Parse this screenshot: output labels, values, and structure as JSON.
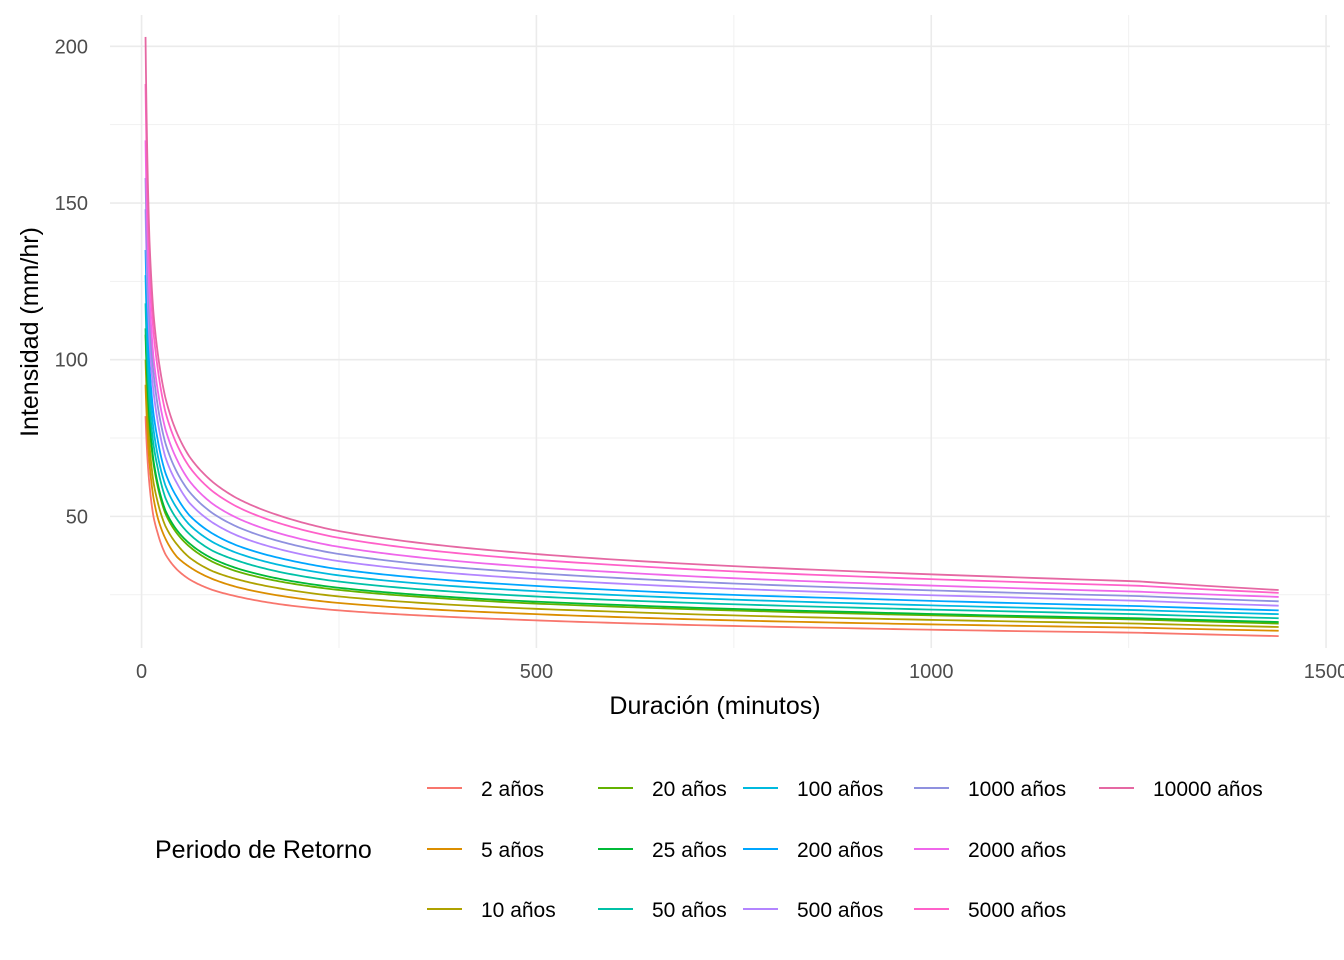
{
  "chart_data": {
    "type": "line",
    "xlabel": "Duración (minutos)",
    "ylabel": "Intensidad (mm/hr)",
    "xlim": [
      -40,
      1505
    ],
    "ylim": [
      8,
      210
    ],
    "x_ticks": [
      0,
      500,
      1000,
      1500
    ],
    "x_tick_labels": [
      "0",
      "500",
      "1000",
      "1500"
    ],
    "y_ticks": [
      50,
      100,
      150,
      200
    ],
    "y_tick_labels": [
      "50",
      "100",
      "150",
      "200"
    ],
    "grid": true,
    "legend": {
      "title": "Periodo de Retorno",
      "position": "bottom",
      "rows": 3
    },
    "x": [
      5,
      10,
      15,
      20,
      30,
      45,
      60,
      90,
      120,
      180,
      240,
      360,
      480,
      600,
      720,
      900,
      1080,
      1260,
      1440
    ],
    "series": [
      {
        "name": "2 años",
        "color": "#F8766D",
        "values": [
          82,
          60,
          50,
          45,
          38,
          33,
          30,
          26.5,
          24.5,
          21.8,
          20.2,
          18.3,
          17,
          16,
          15.2,
          14.3,
          13.5,
          12.9,
          11.8
        ]
      },
      {
        "name": "5 años",
        "color": "#DB8E00",
        "values": [
          92,
          67,
          56,
          50,
          43,
          37,
          34,
          30,
          27.5,
          24.5,
          22.6,
          20.4,
          19,
          17.9,
          17,
          16,
          15.2,
          14.5,
          13.5
        ]
      },
      {
        "name": "10 años",
        "color": "#AEA200",
        "values": [
          100,
          73,
          61,
          55,
          47,
          41,
          37,
          32.5,
          30,
          26.8,
          24.7,
          22.3,
          20.7,
          19.6,
          18.6,
          17.5,
          16.6,
          15.8,
          14.7
        ]
      },
      {
        "name": "20 años",
        "color": "#64B200",
        "values": [
          108,
          79,
          67,
          60,
          51,
          44.5,
          40.5,
          35.5,
          32.5,
          29,
          26.8,
          24.2,
          22.4,
          21.2,
          20.2,
          19,
          18,
          17.1,
          15.8
        ]
      },
      {
        "name": "25 años",
        "color": "#00BA38",
        "values": [
          110,
          81,
          68,
          61,
          52,
          45.5,
          41.5,
          36.5,
          33.5,
          29.8,
          27.5,
          24.8,
          23,
          21.8,
          20.7,
          19.5,
          18.4,
          17.5,
          16.3
        ]
      },
      {
        "name": "50 años",
        "color": "#00C1A7",
        "values": [
          118,
          86,
          73,
          66,
          56,
          49,
          44.5,
          39,
          36,
          32,
          29.5,
          26.6,
          24.7,
          23.3,
          22.2,
          20.9,
          19.8,
          18.8,
          17.5
        ]
      },
      {
        "name": "100 años",
        "color": "#00BADE",
        "values": [
          127,
          92,
          78,
          70,
          60,
          52.5,
          47.5,
          41.8,
          38.4,
          34.2,
          31.5,
          28.4,
          26.4,
          24.9,
          23.7,
          22.3,
          21.1,
          20.1,
          18.8
        ]
      },
      {
        "name": "200 años",
        "color": "#00A6FF",
        "values": [
          135,
          98,
          83,
          75,
          64,
          56,
          50.5,
          44.5,
          40.8,
          36.4,
          33.5,
          30.2,
          28.1,
          26.5,
          25.2,
          23.8,
          22.5,
          21.4,
          20
        ]
      },
      {
        "name": "500 años",
        "color": "#B385FF",
        "values": [
          148,
          106,
          90,
          81,
          69,
          60.5,
          54.5,
          48,
          44,
          39.2,
          36.1,
          32.6,
          30.3,
          28.6,
          27.2,
          25.6,
          24.3,
          23.1,
          21.5
        ]
      },
      {
        "name": "1000 años",
        "color": "#8F91DF",
        "values": [
          158,
          113,
          96,
          86,
          73.5,
          64,
          58,
          51,
          46.8,
          41.7,
          38.4,
          34.6,
          32.2,
          30.4,
          28.9,
          27.2,
          25.8,
          24.6,
          22.9
        ]
      },
      {
        "name": "2000 años",
        "color": "#EF67EB",
        "values": [
          170,
          120,
          101,
          91,
          78,
          68,
          61.5,
          54,
          49.6,
          44.2,
          40.7,
          36.7,
          34.1,
          32.2,
          30.6,
          28.8,
          27.3,
          26,
          24.3
        ]
      },
      {
        "name": "5000 años",
        "color": "#FF61C9",
        "values": [
          188,
          130,
          109,
          98,
          83.5,
          72.8,
          66,
          58,
          53.2,
          47.4,
          43.6,
          39.3,
          36.5,
          34.5,
          32.8,
          30.9,
          29.3,
          27.9,
          25.6
        ]
      },
      {
        "name": "10000 años",
        "color": "#E568A3",
        "values": [
          203,
          138,
          115,
          103,
          88,
          76.5,
          69.3,
          61,
          55.9,
          49.8,
          45.8,
          41.3,
          38.4,
          36.2,
          34.5,
          32.5,
          30.8,
          29.3,
          26.5
        ]
      }
    ]
  }
}
